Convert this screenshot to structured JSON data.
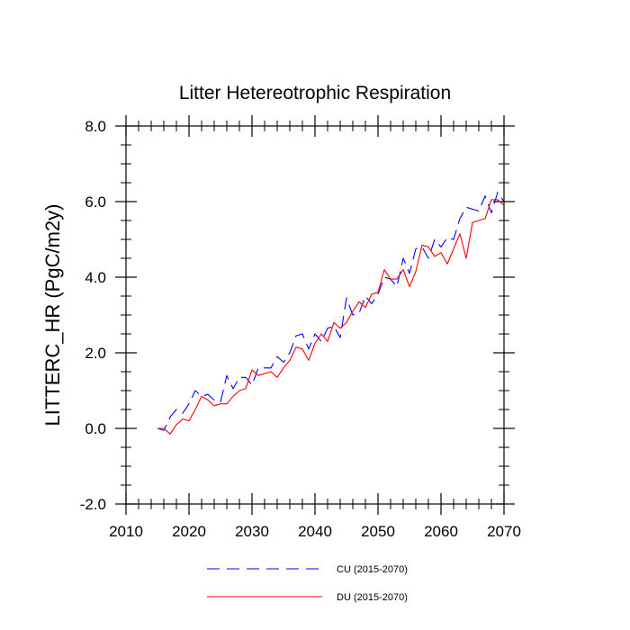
{
  "chart_data": {
    "type": "line",
    "title": "Litter Hetereotrophic Respiration",
    "ylabel": "LITTERC_HR  (PgC/m2y)",
    "xlabel": "",
    "xlim": [
      2010,
      2070
    ],
    "ylim": [
      -2.0,
      8.0
    ],
    "xticks": [
      2010,
      2020,
      2030,
      2040,
      2050,
      2060,
      2070
    ],
    "xtick_labels": [
      "2010",
      "2020",
      "2030",
      "2040",
      "2050",
      "2060",
      "2070"
    ],
    "yticks": [
      -2.0,
      0.0,
      2.0,
      4.0,
      6.0,
      8.0
    ],
    "ytick_labels": [
      "-2.0",
      "0.0",
      "2.0",
      "4.0",
      "6.0",
      "8.0"
    ],
    "grid": false,
    "legend_position": "bottom",
    "x": [
      2015,
      2016,
      2017,
      2018,
      2019,
      2020,
      2021,
      2022,
      2023,
      2024,
      2025,
      2026,
      2027,
      2028,
      2029,
      2030,
      2031,
      2032,
      2033,
      2034,
      2035,
      2036,
      2037,
      2038,
      2039,
      2040,
      2041,
      2042,
      2043,
      2044,
      2045,
      2046,
      2047,
      2048,
      2049,
      2050,
      2051,
      2052,
      2053,
      2054,
      2055,
      2056,
      2057,
      2058,
      2059,
      2060,
      2061,
      2062,
      2063,
      2064,
      2065,
      2066,
      2067,
      2068,
      2069,
      2070
    ],
    "series": [
      {
        "name": "CU (2015-2070)",
        "color": "#0000ff",
        "dash": "dashed",
        "values": [
          0.0,
          -0.05,
          0.3,
          0.5,
          0.4,
          0.65,
          1.0,
          0.85,
          0.9,
          0.75,
          0.7,
          1.4,
          1.05,
          1.35,
          1.35,
          1.15,
          1.6,
          1.6,
          1.6,
          1.9,
          1.75,
          2.0,
          2.45,
          2.5,
          2.1,
          2.5,
          2.3,
          2.65,
          2.7,
          2.4,
          3.45,
          3.0,
          3.05,
          3.5,
          3.3,
          3.55,
          4.0,
          3.95,
          3.75,
          4.5,
          4.1,
          4.75,
          4.8,
          4.5,
          5.0,
          4.8,
          5.05,
          5.0,
          5.55,
          5.85,
          5.8,
          5.75,
          6.15,
          5.7,
          6.25,
          6.0
        ]
      },
      {
        "name": "DU (2015-2070)",
        "color": "#ff0000",
        "dash": "solid",
        "values": [
          0.0,
          0.0,
          -0.15,
          0.1,
          0.25,
          0.2,
          0.5,
          0.85,
          0.75,
          0.6,
          0.65,
          0.65,
          0.85,
          1.0,
          1.05,
          1.55,
          1.4,
          1.45,
          1.5,
          1.35,
          1.6,
          1.8,
          2.15,
          2.1,
          1.8,
          2.25,
          2.5,
          2.3,
          2.8,
          2.65,
          2.8,
          3.1,
          3.35,
          3.2,
          3.55,
          3.6,
          4.2,
          3.95,
          3.95,
          4.2,
          3.75,
          4.15,
          4.85,
          4.8,
          4.55,
          4.65,
          4.35,
          4.75,
          5.15,
          4.5,
          5.45,
          5.5,
          5.55,
          6.05,
          6.05,
          5.9
        ]
      }
    ]
  }
}
